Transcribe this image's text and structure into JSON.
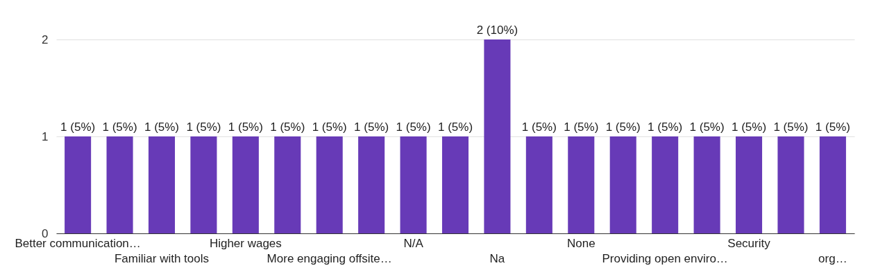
{
  "chart_data": {
    "type": "bar",
    "categories": [
      "Better communication…",
      null,
      "Familiar with tools",
      null,
      "Higher wages",
      null,
      "More engaging offsite…",
      null,
      "N/A",
      null,
      "Na",
      null,
      "None",
      null,
      "Providing open enviro…",
      null,
      "Security",
      null,
      "org…"
    ],
    "values": [
      1,
      1,
      1,
      1,
      1,
      1,
      1,
      1,
      1,
      1,
      2,
      1,
      1,
      1,
      1,
      1,
      1,
      1,
      1
    ],
    "value_labels": [
      "1 (5%)",
      "1 (5%)",
      "1 (5%)",
      "1 (5%)",
      "1 (5%)",
      "1 (5%)",
      "1 (5%)",
      "1 (5%)",
      "1 (5%)",
      "1 (5%)",
      "2 (10%)",
      "1 (5%)",
      "1 (5%)",
      "1 (5%)",
      "1 (5%)",
      "1 (5%)",
      "1 (5%)",
      "1 (5%)",
      "1 (5%)"
    ],
    "color": "#673ab7",
    "ylim": [
      0,
      2
    ],
    "yticks": [
      0,
      1,
      2
    ],
    "grid": "y"
  }
}
